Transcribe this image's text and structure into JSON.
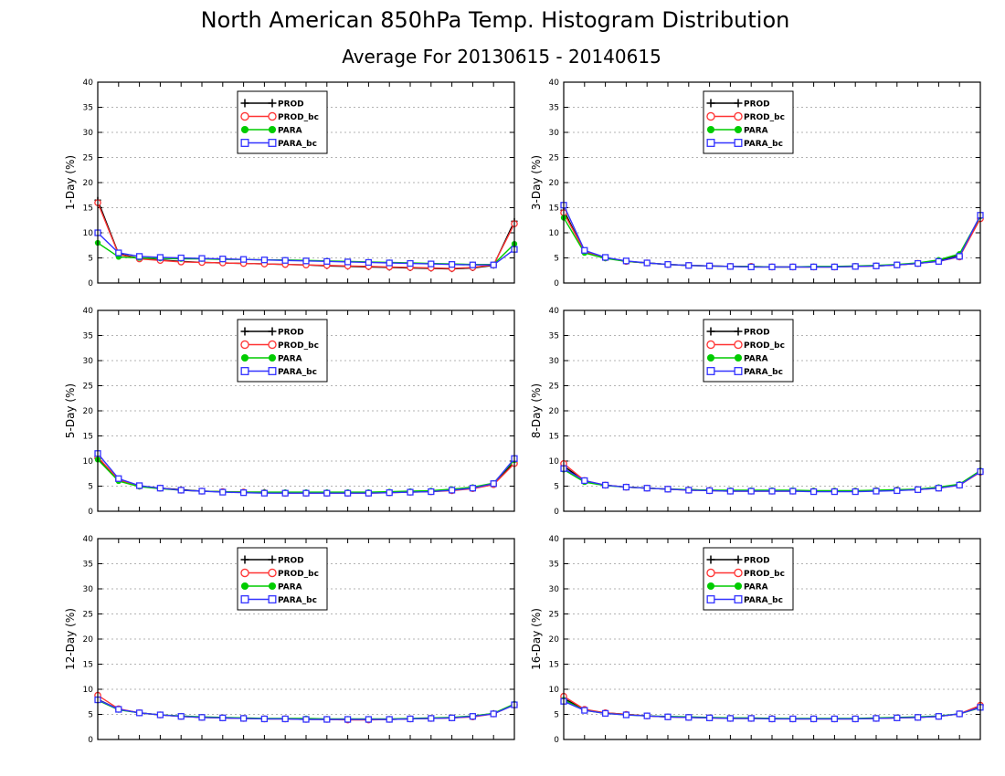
{
  "title": "North American 850hPa Temp. Histogram Distribution",
  "subtitle": "Average For 20130615 - 20140615",
  "chart_data": [
    {
      "type": "line",
      "ylabel": "1-Day (%)",
      "ylim": [
        0,
        40
      ],
      "yticks": [
        0,
        5,
        10,
        15,
        20,
        25,
        30,
        35,
        40
      ],
      "grid": true,
      "legend_position": "top-left",
      "x": [
        1,
        2,
        3,
        4,
        5,
        6,
        7,
        8,
        9,
        10,
        11,
        12,
        13,
        14,
        15,
        16,
        17,
        18,
        19,
        20,
        21
      ],
      "series": [
        {
          "name": "PROD",
          "color": "#000000",
          "marker": "plus",
          "values": [
            16.5,
            5.8,
            4.9,
            4.6,
            4.3,
            4.1,
            4.0,
            3.9,
            3.8,
            3.7,
            3.6,
            3.4,
            3.3,
            3.2,
            3.1,
            3.0,
            2.9,
            2.8,
            3.0,
            3.5,
            12.3
          ]
        },
        {
          "name": "PROD_bc",
          "color": "#ff3333",
          "marker": "circle",
          "values": [
            16.0,
            5.7,
            4.8,
            4.5,
            4.2,
            4.1,
            4.0,
            3.9,
            3.8,
            3.7,
            3.6,
            3.5,
            3.4,
            3.3,
            3.2,
            3.1,
            3.0,
            2.9,
            3.1,
            3.6,
            11.8
          ]
        },
        {
          "name": "PARA",
          "color": "#00cc00",
          "marker": "dot",
          "values": [
            8.0,
            5.2,
            5.0,
            4.9,
            4.8,
            4.8,
            4.7,
            4.7,
            4.6,
            4.6,
            4.5,
            4.4,
            4.3,
            4.2,
            4.1,
            4.0,
            3.9,
            3.8,
            3.7,
            3.7,
            7.8
          ]
        },
        {
          "name": "PARA_bc",
          "color": "#3333ff",
          "marker": "square",
          "values": [
            10.0,
            6.0,
            5.3,
            5.1,
            5.0,
            4.9,
            4.8,
            4.7,
            4.6,
            4.5,
            4.4,
            4.3,
            4.2,
            4.1,
            4.0,
            3.9,
            3.8,
            3.7,
            3.6,
            3.6,
            6.7
          ]
        }
      ]
    },
    {
      "type": "line",
      "ylabel": "3-Day (%)",
      "ylim": [
        0,
        40
      ],
      "yticks": [
        0,
        5,
        10,
        15,
        20,
        25,
        30,
        35,
        40
      ],
      "grid": true,
      "legend_position": "top-left",
      "x": [
        1,
        2,
        3,
        4,
        5,
        6,
        7,
        8,
        9,
        10,
        11,
        12,
        13,
        14,
        15,
        16,
        17,
        18,
        19,
        20,
        21
      ],
      "series": [
        {
          "name": "PROD",
          "color": "#000000",
          "marker": "plus",
          "values": [
            14.5,
            6.2,
            5.0,
            4.3,
            4.0,
            3.7,
            3.5,
            3.4,
            3.3,
            3.2,
            3.2,
            3.2,
            3.2,
            3.2,
            3.3,
            3.4,
            3.6,
            3.9,
            4.4,
            5.5,
            13.0
          ]
        },
        {
          "name": "PROD_bc",
          "color": "#ff3333",
          "marker": "circle",
          "values": [
            14.0,
            6.3,
            5.0,
            4.3,
            4.0,
            3.7,
            3.5,
            3.4,
            3.3,
            3.3,
            3.2,
            3.2,
            3.2,
            3.2,
            3.3,
            3.4,
            3.6,
            3.9,
            4.3,
            5.2,
            12.8
          ]
        },
        {
          "name": "PARA",
          "color": "#00cc00",
          "marker": "dot",
          "values": [
            13.0,
            6.0,
            4.9,
            4.3,
            4.0,
            3.7,
            3.5,
            3.4,
            3.3,
            3.3,
            3.2,
            3.2,
            3.3,
            3.3,
            3.4,
            3.5,
            3.7,
            4.0,
            4.6,
            5.8,
            13.3
          ]
        },
        {
          "name": "PARA_bc",
          "color": "#3333ff",
          "marker": "square",
          "values": [
            15.5,
            6.5,
            5.1,
            4.4,
            4.0,
            3.7,
            3.5,
            3.4,
            3.3,
            3.2,
            3.2,
            3.2,
            3.2,
            3.2,
            3.3,
            3.4,
            3.6,
            3.9,
            4.3,
            5.3,
            13.5
          ]
        }
      ]
    },
    {
      "type": "line",
      "ylabel": "5-Day (%)",
      "ylim": [
        0,
        40
      ],
      "yticks": [
        0,
        5,
        10,
        15,
        20,
        25,
        30,
        35,
        40
      ],
      "grid": true,
      "legend_position": "top-left",
      "x": [
        1,
        2,
        3,
        4,
        5,
        6,
        7,
        8,
        9,
        10,
        11,
        12,
        13,
        14,
        15,
        16,
        17,
        18,
        19,
        20,
        21
      ],
      "series": [
        {
          "name": "PROD",
          "color": "#000000",
          "marker": "plus",
          "values": [
            10.5,
            6.2,
            5.0,
            4.6,
            4.3,
            4.0,
            3.9,
            3.8,
            3.8,
            3.7,
            3.7,
            3.7,
            3.7,
            3.7,
            3.8,
            3.9,
            4.0,
            4.3,
            4.7,
            5.5,
            9.8
          ]
        },
        {
          "name": "PROD_bc",
          "color": "#ff3333",
          "marker": "circle",
          "values": [
            10.8,
            6.3,
            5.0,
            4.6,
            4.2,
            4.0,
            3.9,
            3.8,
            3.7,
            3.6,
            3.6,
            3.6,
            3.6,
            3.6,
            3.7,
            3.8,
            3.9,
            4.1,
            4.5,
            5.3,
            9.5
          ]
        },
        {
          "name": "PARA",
          "color": "#00cc00",
          "marker": "dot",
          "values": [
            10.3,
            6.0,
            4.9,
            4.5,
            4.2,
            4.0,
            3.9,
            3.8,
            3.8,
            3.8,
            3.8,
            3.8,
            3.8,
            3.8,
            3.9,
            4.0,
            4.1,
            4.4,
            4.8,
            5.6,
            10.2
          ]
        },
        {
          "name": "PARA_bc",
          "color": "#3333ff",
          "marker": "square",
          "values": [
            11.5,
            6.5,
            5.1,
            4.6,
            4.2,
            4.0,
            3.8,
            3.7,
            3.6,
            3.6,
            3.6,
            3.6,
            3.6,
            3.6,
            3.7,
            3.8,
            3.9,
            4.2,
            4.6,
            5.5,
            10.5
          ]
        }
      ]
    },
    {
      "type": "line",
      "ylabel": "8-Day (%)",
      "ylim": [
        0,
        40
      ],
      "yticks": [
        0,
        5,
        10,
        15,
        20,
        25,
        30,
        35,
        40
      ],
      "grid": true,
      "legend_position": "top-left",
      "x": [
        1,
        2,
        3,
        4,
        5,
        6,
        7,
        8,
        9,
        10,
        11,
        12,
        13,
        14,
        15,
        16,
        17,
        18,
        19,
        20,
        21
      ],
      "series": [
        {
          "name": "PROD",
          "color": "#000000",
          "marker": "plus",
          "values": [
            9.0,
            6.0,
            5.2,
            4.8,
            4.6,
            4.4,
            4.3,
            4.2,
            4.1,
            4.1,
            4.1,
            4.1,
            4.0,
            4.0,
            4.0,
            4.1,
            4.2,
            4.3,
            4.7,
            5.3,
            8.0
          ]
        },
        {
          "name": "PROD_bc",
          "color": "#ff3333",
          "marker": "circle",
          "values": [
            9.5,
            6.1,
            5.2,
            4.8,
            4.6,
            4.4,
            4.2,
            4.1,
            4.0,
            4.0,
            4.0,
            4.0,
            4.0,
            4.0,
            4.0,
            4.1,
            4.2,
            4.3,
            4.6,
            5.2,
            7.8
          ]
        },
        {
          "name": "PARA",
          "color": "#00cc00",
          "marker": "dot",
          "values": [
            8.3,
            5.8,
            5.1,
            4.8,
            4.6,
            4.4,
            4.3,
            4.2,
            4.2,
            4.2,
            4.2,
            4.2,
            4.1,
            4.1,
            4.1,
            4.2,
            4.3,
            4.4,
            4.8,
            5.4,
            8.1
          ]
        },
        {
          "name": "PARA_bc",
          "color": "#3333ff",
          "marker": "square",
          "values": [
            8.5,
            6.1,
            5.2,
            4.8,
            4.6,
            4.4,
            4.2,
            4.1,
            4.0,
            4.0,
            4.0,
            4.0,
            3.9,
            3.9,
            3.9,
            4.0,
            4.1,
            4.3,
            4.6,
            5.2,
            7.9
          ]
        }
      ]
    },
    {
      "type": "line",
      "ylabel": "12-Day (%)",
      "ylim": [
        0,
        40
      ],
      "yticks": [
        0,
        5,
        10,
        15,
        20,
        25,
        30,
        35,
        40
      ],
      "grid": true,
      "legend_position": "top-left",
      "x": [
        1,
        2,
        3,
        4,
        5,
        6,
        7,
        8,
        9,
        10,
        11,
        12,
        13,
        14,
        15,
        16,
        17,
        18,
        19,
        20,
        21
      ],
      "series": [
        {
          "name": "PROD",
          "color": "#000000",
          "marker": "plus",
          "values": [
            8.0,
            6.0,
            5.3,
            4.9,
            4.6,
            4.4,
            4.3,
            4.2,
            4.1,
            4.1,
            4.1,
            4.0,
            4.0,
            4.0,
            4.0,
            4.1,
            4.2,
            4.3,
            4.6,
            5.2,
            7.0
          ]
        },
        {
          "name": "PROD_bc",
          "color": "#ff3333",
          "marker": "circle",
          "values": [
            8.8,
            6.1,
            5.3,
            4.9,
            4.6,
            4.4,
            4.3,
            4.2,
            4.1,
            4.1,
            4.0,
            4.0,
            3.9,
            3.9,
            4.0,
            4.1,
            4.2,
            4.3,
            4.5,
            5.1,
            6.9
          ]
        },
        {
          "name": "PARA",
          "color": "#00cc00",
          "marker": "dot",
          "values": [
            7.8,
            5.9,
            5.3,
            4.9,
            4.7,
            4.5,
            4.4,
            4.3,
            4.2,
            4.2,
            4.2,
            4.1,
            4.1,
            4.1,
            4.1,
            4.2,
            4.3,
            4.4,
            4.7,
            5.2,
            7.1
          ]
        },
        {
          "name": "PARA_bc",
          "color": "#3333ff",
          "marker": "square",
          "values": [
            7.9,
            6.0,
            5.3,
            4.9,
            4.6,
            4.4,
            4.3,
            4.2,
            4.1,
            4.1,
            4.0,
            4.0,
            4.0,
            4.0,
            4.0,
            4.1,
            4.2,
            4.3,
            4.6,
            5.1,
            6.9
          ]
        }
      ]
    },
    {
      "type": "line",
      "ylabel": "16-Day (%)",
      "ylim": [
        0,
        40
      ],
      "yticks": [
        0,
        5,
        10,
        15,
        20,
        25,
        30,
        35,
        40
      ],
      "grid": true,
      "legend_position": "top-left",
      "x": [
        1,
        2,
        3,
        4,
        5,
        6,
        7,
        8,
        9,
        10,
        11,
        12,
        13,
        14,
        15,
        16,
        17,
        18,
        19,
        20,
        21
      ],
      "series": [
        {
          "name": "PROD",
          "color": "#000000",
          "marker": "plus",
          "values": [
            8.2,
            5.9,
            5.3,
            5.0,
            4.7,
            4.5,
            4.4,
            4.3,
            4.2,
            4.2,
            4.2,
            4.1,
            4.1,
            4.1,
            4.1,
            4.2,
            4.3,
            4.4,
            4.6,
            5.1,
            6.5
          ]
        },
        {
          "name": "PROD_bc",
          "color": "#ff3333",
          "marker": "circle",
          "values": [
            8.6,
            6.0,
            5.3,
            5.0,
            4.7,
            4.5,
            4.4,
            4.3,
            4.2,
            4.2,
            4.1,
            4.1,
            4.1,
            4.1,
            4.1,
            4.2,
            4.3,
            4.4,
            4.6,
            5.1,
            6.8
          ]
        },
        {
          "name": "PARA",
          "color": "#00cc00",
          "marker": "dot",
          "values": [
            7.9,
            5.8,
            5.2,
            4.9,
            4.7,
            4.6,
            4.5,
            4.4,
            4.3,
            4.3,
            4.2,
            4.2,
            4.2,
            4.2,
            4.2,
            4.3,
            4.4,
            4.5,
            4.7,
            5.1,
            6.3
          ]
        },
        {
          "name": "PARA_bc",
          "color": "#3333ff",
          "marker": "square",
          "values": [
            7.6,
            5.8,
            5.2,
            4.9,
            4.7,
            4.5,
            4.4,
            4.3,
            4.2,
            4.2,
            4.1,
            4.1,
            4.1,
            4.1,
            4.1,
            4.2,
            4.3,
            4.4,
            4.6,
            5.1,
            6.4
          ]
        }
      ]
    }
  ]
}
